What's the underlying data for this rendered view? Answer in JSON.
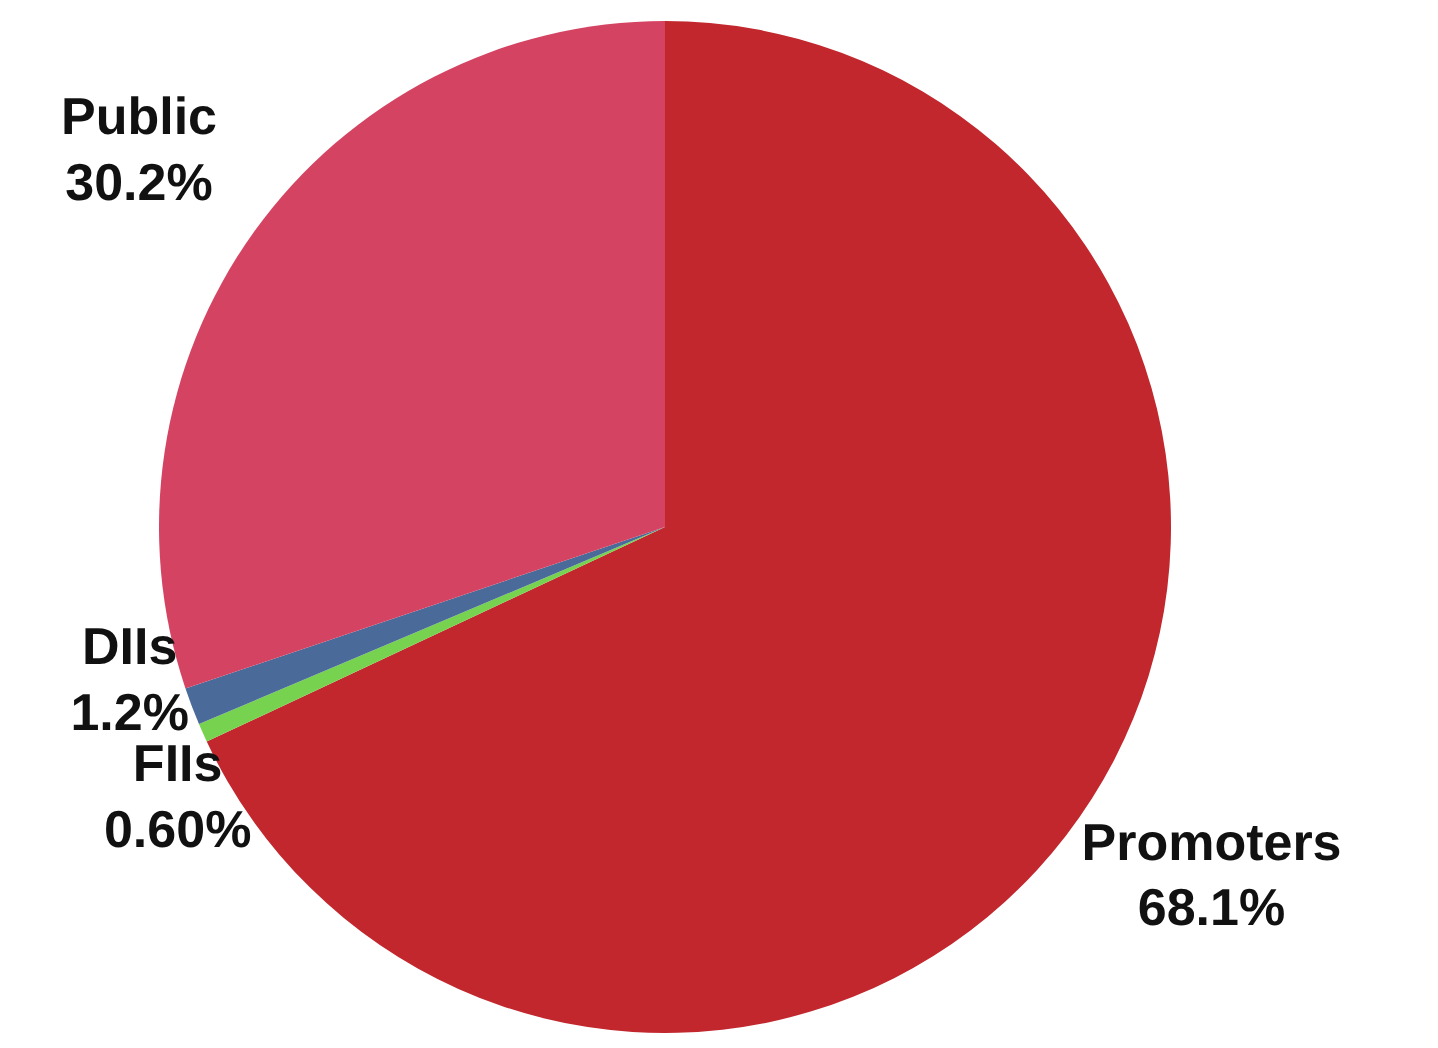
{
  "chart_data": {
    "type": "pie",
    "categories": [
      "Promoters",
      "FIIs",
      "DIIs",
      "Public"
    ],
    "values": [
      68.1,
      0.6,
      1.2,
      30.2
    ],
    "value_labels": [
      "68.1%",
      "0.60%",
      "1.2%",
      "30.2%"
    ],
    "colors": [
      "#c1272d",
      "#77d34f",
      "#4a6a9a",
      "#d44462"
    ]
  }
}
